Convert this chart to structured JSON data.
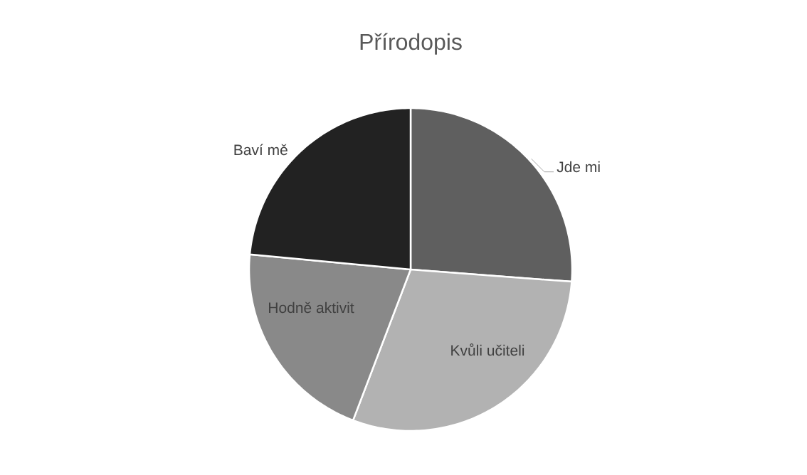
{
  "chart_data": {
    "type": "pie",
    "title": "Přírodopis",
    "categories": [
      "Jde mi",
      "Kvůli učiteli",
      "Hodně aktivit",
      "Baví mě"
    ],
    "values": [
      26.2,
      29.6,
      20.7,
      23.5
    ],
    "colors": [
      "#5f5f5f",
      "#b2b2b2",
      "#898989",
      "#222222"
    ]
  }
}
